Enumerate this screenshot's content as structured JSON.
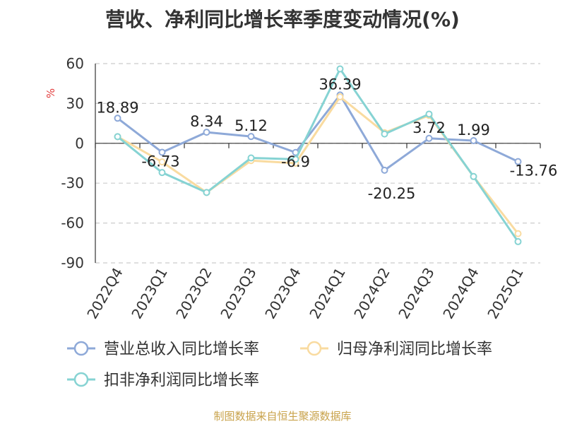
{
  "title": "营收、净利同比增长率季度变动情况(%)",
  "source": "制图数据来自恒生聚源数据库",
  "chart_data": {
    "type": "line",
    "title": "营收、净利同比增长率季度变动情况(%)",
    "unit": "%",
    "categories": [
      "2022Q4",
      "2023Q1",
      "2023Q2",
      "2023Q3",
      "2023Q4",
      "2024Q1",
      "2024Q2",
      "2024Q3",
      "2024Q4",
      "2025Q1"
    ],
    "ylim": [
      -90,
      60
    ],
    "yticks": [
      60,
      30,
      0,
      -30,
      -60,
      -90
    ],
    "grid": true,
    "legend_position": "bottom",
    "series": [
      {
        "name": "营业总收入同比增长率",
        "color": "#8ea9d8",
        "values": [
          18.89,
          -6.73,
          8.34,
          5.12,
          -6.9,
          36.39,
          -20.25,
          3.72,
          1.99,
          -13.76
        ],
        "labels": [
          "18.89",
          "-6.73",
          "8.34",
          "5.12",
          "-6.9",
          "36.39",
          "-20.25",
          "3.72",
          "1.99",
          "-13.76"
        ]
      },
      {
        "name": "归母净利润同比增长率",
        "color": "#f9dba0",
        "values": [
          5,
          -14,
          -37,
          -13,
          -15,
          35,
          8,
          21,
          -25,
          -68
        ]
      },
      {
        "name": "扣非净利润同比增长率",
        "color": "#86d3d3",
        "values": [
          5,
          -22,
          -37,
          -11,
          -12,
          56,
          7,
          22,
          -25,
          -74
        ]
      }
    ]
  }
}
